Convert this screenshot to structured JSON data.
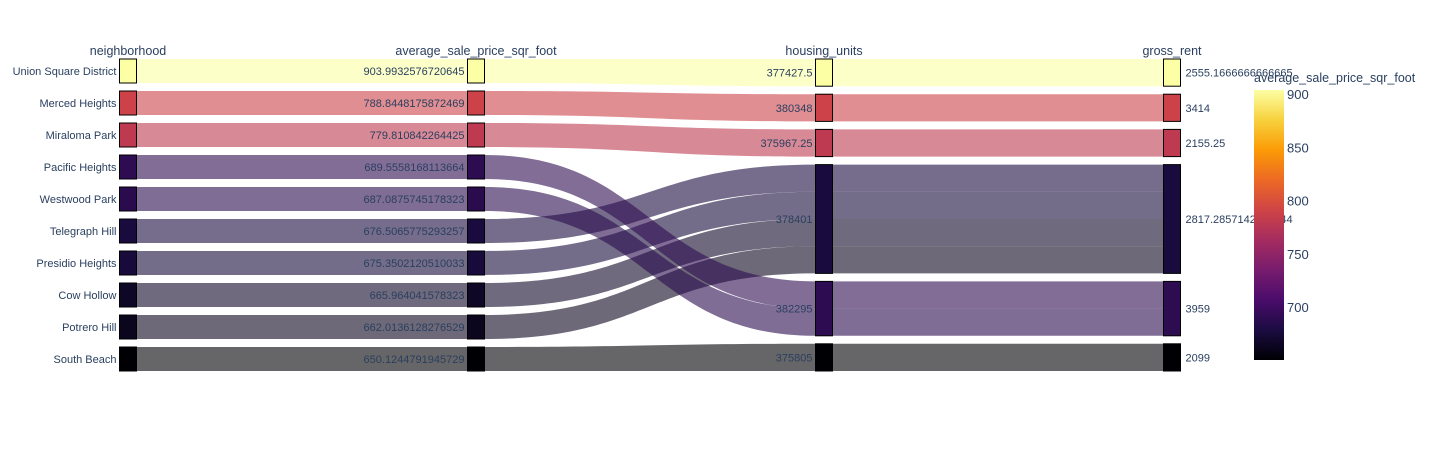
{
  "chart_data": {
    "type": "parallel_categories",
    "dimensions": [
      {
        "key": "neighborhood",
        "label": "neighborhood"
      },
      {
        "key": "average_sale_price_sqr_foot",
        "label": "average_sale_price_sqr_foot"
      },
      {
        "key": "housing_units",
        "label": "housing_units"
      },
      {
        "key": "gross_rent",
        "label": "gross_rent"
      }
    ],
    "records": [
      {
        "neighborhood": "Union Square District",
        "average_sale_price_sqr_foot": "903.9932576720645",
        "housing_units": "377427.5",
        "gross_rent": "2555.1666666666665",
        "color_value": 903.99
      },
      {
        "neighborhood": "Merced Heights",
        "average_sale_price_sqr_foot": "788.8448175872469",
        "housing_units": "380348",
        "gross_rent": "3414",
        "color_value": 788.84
      },
      {
        "neighborhood": "Miraloma Park",
        "average_sale_price_sqr_foot": "779.810842264425",
        "housing_units": "375967.25",
        "gross_rent": "2155.25",
        "color_value": 779.81
      },
      {
        "neighborhood": "Pacific Heights",
        "average_sale_price_sqr_foot": "689.5558168113664",
        "housing_units": "382295",
        "gross_rent": "3959",
        "color_value": 689.56
      },
      {
        "neighborhood": "Westwood Park",
        "average_sale_price_sqr_foot": "687.0875745178323",
        "housing_units": "382295",
        "gross_rent": "3959",
        "color_value": 687.09
      },
      {
        "neighborhood": "Telegraph Hill",
        "average_sale_price_sqr_foot": "676.5065775293257",
        "housing_units": "378401",
        "gross_rent": "2817.2857142857147",
        "color_value": 676.51
      },
      {
        "neighborhood": "Presidio Heights",
        "average_sale_price_sqr_foot": "675.3502120510033",
        "housing_units": "378401",
        "gross_rent": "2817.2857142857147",
        "color_value": 675.35
      },
      {
        "neighborhood": "Cow Hollow",
        "average_sale_price_sqr_foot": "665.964041578323",
        "housing_units": "378401",
        "gross_rent": "2817.2857142857147",
        "color_value": 665.96
      },
      {
        "neighborhood": "Potrero Hill",
        "average_sale_price_sqr_foot": "662.0136128276529",
        "housing_units": "378401",
        "gross_rent": "2817.2857142857147",
        "color_value": 662.01
      },
      {
        "neighborhood": "South Beach",
        "average_sale_price_sqr_foot": "650.1244791945729",
        "housing_units": "375805",
        "gross_rent": "2099",
        "color_value": 650.12
      }
    ],
    "visible_category_labels": {
      "neighborhood": [
        "Union Square District",
        "Merced Heights",
        "Miraloma Park",
        "Pacific Heights",
        "Westwood Park",
        "Telegraph Hill",
        "Presidio Heights",
        "Cow Hollow",
        "Potrero Hill",
        "South Beach"
      ],
      "average_sale_price_sqr_foot": [
        "903.9932576720645",
        "788.8448175872469",
        "779.810842264425",
        "689.5558168113664",
        "687.0875745178323",
        "676.5065775293257",
        "675.3502120510033",
        "665.964041578323",
        "662.0136128276529",
        "650.1244791945729"
      ],
      "housing_units": [
        "377427.5",
        "380348",
        "375967.25",
        "378401",
        "382295",
        "375805"
      ],
      "gross_rent": [
        "2555.1666666666665",
        "3414",
        "2155.25",
        "2817.2857142857144",
        "3959",
        "2099"
      ]
    },
    "node_order": {
      "neighborhood": [
        "Union Square District",
        "Merced Heights",
        "Miraloma Park",
        "Pacific Heights",
        "Westwood Park",
        "Telegraph Hill",
        "Presidio Heights",
        "Cow Hollow",
        "Potrero Hill",
        "South Beach"
      ],
      "average_sale_price_sqr_foot": [
        "903.9932576720645",
        "788.8448175872469",
        "779.810842264425",
        "689.5558168113664",
        "687.0875745178323",
        "676.5065775293257",
        "675.3502120510033",
        "665.964041578323",
        "662.0136128276529",
        "650.1244791945729"
      ],
      "housing_units": [
        "377427.5",
        "380348",
        "375967.25",
        "378401",
        "382295",
        "375805"
      ],
      "gross_rent": [
        "2555.1666666666665",
        "3414",
        "2155.25",
        "2817.2857142857147",
        "3959",
        "2099"
      ]
    },
    "node_label_text": {
      "gross_rent": {
        "2817.2857142857147": "2817.2857142857144"
      }
    },
    "colorbar": {
      "title": "average_sale_price_sqr_foot",
      "range": [
        650.12,
        903.99
      ],
      "ticks": [
        700,
        750,
        800,
        850,
        900
      ],
      "colorscale": "inferno",
      "stops": [
        "#000004",
        "#1b0c41",
        "#4a0c6b",
        "#781c6d",
        "#a52c60",
        "#cf4446",
        "#ed6925",
        "#fb9b06",
        "#f7d13d",
        "#fcffa4"
      ]
    }
  }
}
